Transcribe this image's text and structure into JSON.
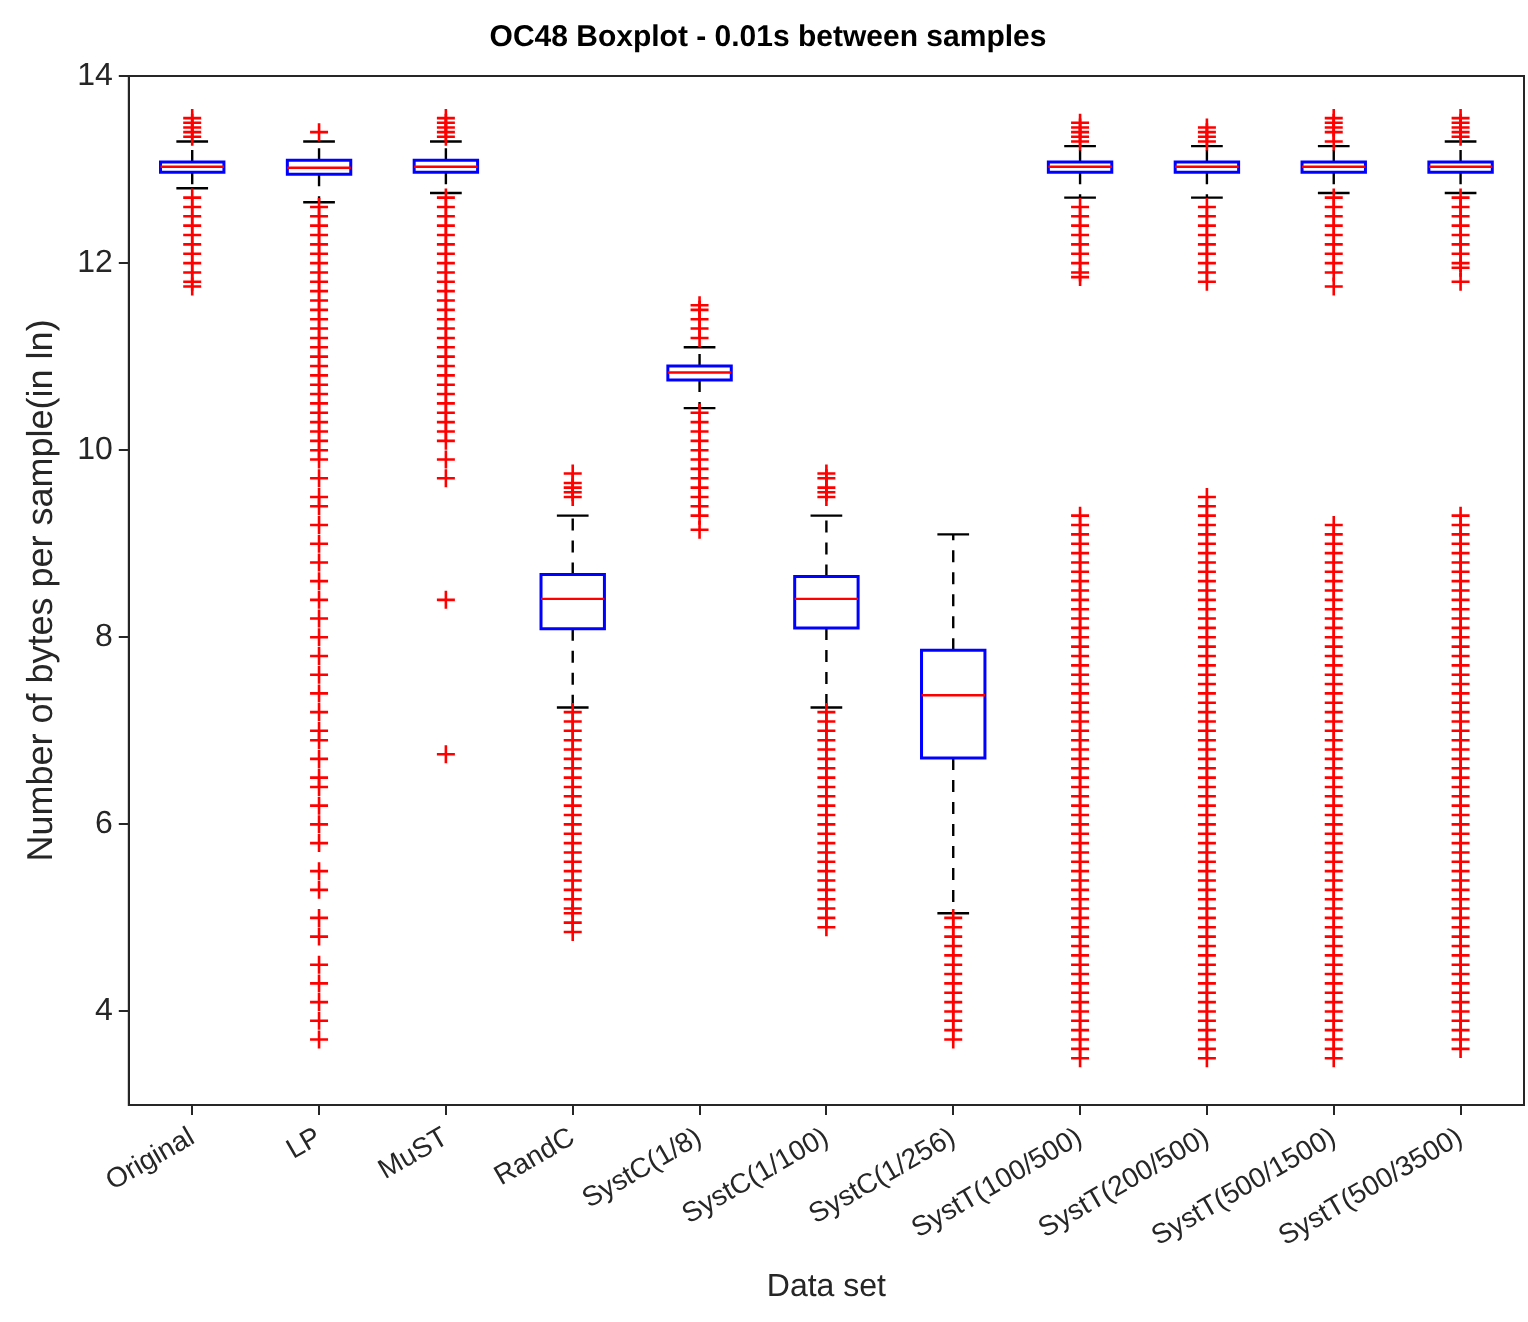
{
  "chart_data": {
    "type": "box",
    "title": "OC48 Boxplot - 0.01s between samples",
    "xlabel": "Data set",
    "ylabel": "Number of bytes per sample(in ln)",
    "categories": [
      "Original",
      "LP",
      "MuST",
      "RandC",
      "SystC(1/8)",
      "SystC(1/100)",
      "SystC(1/256)",
      "SystT(100/500)",
      "SystT(200/500)",
      "SystT(500/1500)",
      "SystT(500/3500)"
    ],
    "color": "#0000ff",
    "ylim": [
      3,
      14
    ],
    "yticks": [
      4,
      6,
      8,
      10,
      12,
      14
    ],
    "grid": false,
    "legend": false,
    "boxes": [
      {
        "low": 12.8,
        "q1": 12.97,
        "median": 13.03,
        "q3": 13.08,
        "high": 13.3,
        "outliers": [
          13.35,
          13.4,
          13.45,
          13.5,
          13.55,
          11.75,
          11.8,
          11.9,
          12.0,
          12.1,
          12.2,
          12.3,
          12.4,
          12.5,
          12.6,
          12.7
        ]
      },
      {
        "low": 12.65,
        "q1": 12.95,
        "median": 13.02,
        "q3": 13.1,
        "high": 13.3,
        "outliers": [
          13.4,
          3.7,
          3.9,
          4.1,
          4.3,
          4.5,
          4.8,
          5.0,
          5.3,
          5.5,
          5.8,
          6.0,
          6.2,
          6.4,
          6.5,
          6.7,
          6.9,
          7.0,
          7.2,
          7.4,
          7.6,
          7.8,
          8.0,
          8.2,
          8.4,
          8.6,
          8.8,
          9.0,
          9.2,
          9.4,
          9.5,
          9.7,
          9.9,
          10.0,
          10.1,
          10.2,
          10.3,
          10.4,
          10.5,
          10.6,
          10.7,
          10.8,
          10.9,
          11.0,
          11.1,
          11.2,
          11.3,
          11.4,
          11.5,
          11.6,
          11.7,
          11.8,
          11.9,
          12.0,
          12.1,
          12.2,
          12.3,
          12.4,
          12.5,
          12.6
        ]
      },
      {
        "low": 12.75,
        "q1": 12.97,
        "median": 13.03,
        "q3": 13.1,
        "high": 13.3,
        "outliers": [
          13.35,
          13.4,
          13.45,
          13.5,
          13.55,
          10.1,
          10.2,
          10.3,
          10.4,
          10.5,
          10.6,
          10.7,
          10.8,
          10.9,
          11.0,
          11.1,
          11.2,
          11.3,
          11.4,
          11.5,
          11.6,
          11.7,
          11.8,
          11.9,
          12.0,
          12.1,
          12.2,
          12.3,
          12.4,
          12.5,
          12.6,
          12.7,
          9.9,
          9.7,
          8.4,
          6.75
        ]
      },
      {
        "low": 7.25,
        "q1": 8.09,
        "median": 8.41,
        "q3": 8.67,
        "high": 9.3,
        "outliers": [
          9.5,
          9.55,
          9.6,
          9.65,
          9.75,
          4.85,
          4.95,
          5.05,
          5.1,
          5.2,
          5.3,
          5.4,
          5.5,
          5.6,
          5.7,
          5.8,
          5.9,
          6.0,
          6.1,
          6.2,
          6.3,
          6.4,
          6.5,
          6.6,
          6.7,
          6.8,
          6.9,
          7.0,
          7.1,
          7.2
        ]
      },
      {
        "low": 10.45,
        "q1": 10.75,
        "median": 10.83,
        "q3": 10.9,
        "high": 11.1,
        "outliers": [
          11.2,
          11.3,
          11.4,
          11.5,
          11.55,
          9.15,
          9.3,
          9.4,
          9.5,
          9.6,
          9.7,
          9.8,
          9.9,
          10.0,
          10.1,
          10.2,
          10.3,
          10.4
        ]
      },
      {
        "low": 7.25,
        "q1": 8.1,
        "median": 8.41,
        "q3": 8.65,
        "high": 9.3,
        "outliers": [
          9.5,
          9.55,
          9.6,
          9.7,
          9.75,
          4.9,
          5.0,
          5.1,
          5.2,
          5.3,
          5.4,
          5.5,
          5.6,
          5.7,
          5.8,
          5.9,
          6.0,
          6.1,
          6.2,
          6.3,
          6.4,
          6.5,
          6.6,
          6.7,
          6.8,
          6.9,
          7.0,
          7.1,
          7.2
        ]
      },
      {
        "low": 5.05,
        "q1": 6.71,
        "median": 7.38,
        "q3": 7.86,
        "high": 9.1,
        "outliers": [
          3.7,
          3.8,
          3.9,
          4.0,
          4.1,
          4.2,
          4.3,
          4.4,
          4.5,
          4.6,
          4.7,
          4.8,
          4.9,
          5.0
        ]
      },
      {
        "low": 12.7,
        "q1": 12.97,
        "median": 13.03,
        "q3": 13.08,
        "high": 13.25,
        "outliers": [
          13.3,
          13.35,
          13.4,
          13.45,
          13.5,
          11.85,
          11.9,
          12.0,
          12.1,
          12.2,
          12.3,
          12.4,
          12.5,
          12.6,
          3.5,
          3.6,
          3.7,
          3.8,
          3.9,
          4.0,
          4.1,
          4.2,
          4.3,
          4.4,
          4.5,
          4.6,
          4.7,
          4.8,
          4.9,
          5.0,
          5.1,
          5.2,
          5.3,
          5.4,
          5.5,
          5.6,
          5.7,
          5.8,
          5.9,
          6.0,
          6.1,
          6.2,
          6.3,
          6.4,
          6.5,
          6.6,
          6.7,
          6.8,
          6.9,
          7.0,
          7.1,
          7.2,
          7.3,
          7.4,
          7.5,
          7.6,
          7.7,
          7.8,
          7.9,
          8.0,
          8.1,
          8.2,
          8.3,
          8.4,
          8.5,
          8.6,
          8.7,
          8.8,
          8.9,
          9.0,
          9.1,
          9.2,
          9.3
        ]
      },
      {
        "low": 12.7,
        "q1": 12.97,
        "median": 13.03,
        "q3": 13.08,
        "high": 13.25,
        "outliers": [
          13.3,
          13.35,
          13.4,
          13.45,
          11.8,
          11.9,
          12.0,
          12.1,
          12.2,
          12.3,
          12.4,
          12.5,
          12.6,
          3.5,
          3.6,
          3.7,
          3.8,
          3.9,
          4.0,
          4.1,
          4.2,
          4.3,
          4.4,
          4.5,
          4.6,
          4.7,
          4.8,
          4.9,
          5.0,
          5.1,
          5.2,
          5.3,
          5.4,
          5.5,
          5.6,
          5.7,
          5.8,
          5.9,
          6.0,
          6.1,
          6.2,
          6.3,
          6.4,
          6.5,
          6.6,
          6.7,
          6.8,
          6.9,
          7.0,
          7.1,
          7.2,
          7.3,
          7.4,
          7.5,
          7.6,
          7.7,
          7.8,
          7.9,
          8.0,
          8.1,
          8.2,
          8.3,
          8.4,
          8.5,
          8.6,
          8.7,
          8.8,
          8.9,
          9.0,
          9.1,
          9.2,
          9.3,
          9.4,
          9.5
        ]
      },
      {
        "low": 12.75,
        "q1": 12.97,
        "median": 13.03,
        "q3": 13.08,
        "high": 13.25,
        "outliers": [
          13.3,
          13.4,
          13.45,
          13.5,
          13.55,
          11.75,
          11.9,
          12.0,
          12.1,
          12.2,
          12.3,
          12.4,
          12.5,
          12.6,
          12.7,
          3.5,
          3.6,
          3.7,
          3.8,
          3.9,
          4.0,
          4.1,
          4.2,
          4.3,
          4.4,
          4.5,
          4.6,
          4.7,
          4.8,
          4.9,
          5.0,
          5.1,
          5.2,
          5.3,
          5.4,
          5.5,
          5.6,
          5.7,
          5.8,
          5.9,
          6.0,
          6.1,
          6.2,
          6.3,
          6.4,
          6.5,
          6.6,
          6.7,
          6.8,
          6.9,
          7.0,
          7.1,
          7.2,
          7.3,
          7.4,
          7.5,
          7.6,
          7.7,
          7.8,
          7.9,
          8.0,
          8.1,
          8.2,
          8.3,
          8.4,
          8.5,
          8.6,
          8.7,
          8.8,
          8.9,
          9.0,
          9.1,
          9.2
        ]
      },
      {
        "low": 12.75,
        "q1": 12.97,
        "median": 13.03,
        "q3": 13.08,
        "high": 13.3,
        "outliers": [
          13.35,
          13.4,
          13.45,
          13.5,
          13.55,
          11.8,
          11.95,
          12.0,
          12.1,
          12.2,
          12.3,
          12.4,
          12.5,
          12.6,
          12.7,
          3.6,
          3.7,
          3.8,
          3.9,
          4.0,
          4.1,
          4.2,
          4.3,
          4.4,
          4.5,
          4.6,
          4.7,
          4.8,
          4.9,
          5.0,
          5.1,
          5.2,
          5.3,
          5.4,
          5.5,
          5.6,
          5.7,
          5.8,
          5.9,
          6.0,
          6.1,
          6.2,
          6.3,
          6.4,
          6.5,
          6.6,
          6.7,
          6.8,
          6.9,
          7.0,
          7.1,
          7.2,
          7.3,
          7.4,
          7.5,
          7.6,
          7.7,
          7.8,
          7.9,
          8.0,
          8.1,
          8.2,
          8.3,
          8.4,
          8.5,
          8.6,
          8.7,
          8.8,
          8.9,
          9.0,
          9.1,
          9.2,
          9.3
        ]
      }
    ]
  }
}
